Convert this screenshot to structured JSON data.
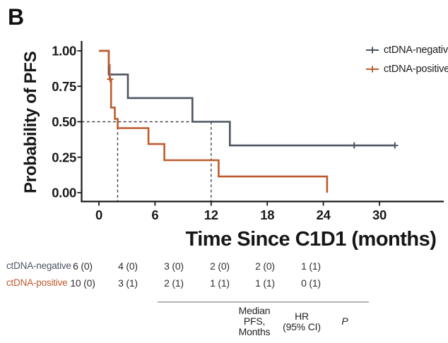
{
  "panel_label": "B",
  "legend": {
    "entries": [
      {
        "label": "ctDNA-negative",
        "color": "#4d5561"
      },
      {
        "label": "ctDNA-positive",
        "color": "#bd5b2d"
      }
    ]
  },
  "chart_data": {
    "type": "line",
    "subtype": "kaplan-meier-step-curve",
    "title": "",
    "xlabel": "Time Since C1D1 (months)",
    "ylabel": "Probability of PFS",
    "x_ticks": [
      0,
      6,
      12,
      18,
      24,
      30
    ],
    "y_ticks": [
      "1.00",
      "0.75",
      "0.50",
      "0.25",
      "0.00"
    ],
    "xlim": [
      0,
      31.7
    ],
    "ylim": [
      0,
      1
    ],
    "grid": false,
    "legend_position": "top-right",
    "series": [
      {
        "name": "ctDNA-negative",
        "color": "#4d5561",
        "points": [
          [
            0,
            1.0
          ],
          [
            1.05,
            1.0
          ],
          [
            1.05,
            0.833
          ],
          [
            3.1,
            0.833
          ],
          [
            3.1,
            0.667
          ],
          [
            10.0,
            0.667
          ],
          [
            10.0,
            0.5
          ],
          [
            14.0,
            0.5
          ],
          [
            14.0,
            0.333
          ],
          [
            31.65,
            0.333
          ]
        ],
        "censor_marks": [
          [
            27.3,
            0.333
          ],
          [
            31.65,
            0.333
          ]
        ]
      },
      {
        "name": "ctDNA-positive",
        "color": "#bd5b2d",
        "points": [
          [
            0,
            1.0
          ],
          [
            1.05,
            1.0
          ],
          [
            1.05,
            0.9
          ],
          [
            1.15,
            0.9
          ],
          [
            1.15,
            0.8
          ],
          [
            1.3,
            0.8
          ],
          [
            1.3,
            0.6
          ],
          [
            1.7,
            0.6
          ],
          [
            1.7,
            0.52
          ],
          [
            2.0,
            0.52
          ],
          [
            2.0,
            0.455
          ],
          [
            5.3,
            0.455
          ],
          [
            5.3,
            0.343
          ],
          [
            7.0,
            0.343
          ],
          [
            7.0,
            0.229
          ],
          [
            12.8,
            0.229
          ],
          [
            12.8,
            0.114
          ],
          [
            24.4,
            0.114
          ],
          [
            24.4,
            0.0
          ]
        ],
        "censor_marks": [
          [
            1.2,
            0.8
          ]
        ]
      }
    ],
    "median_lines": {
      "probability": 0.5,
      "horizontal_to_month": 12.0,
      "vertical_at_months": [
        2.0,
        12.0
      ],
      "medians": {
        "ctDNA-positive": 2.0,
        "ctDNA-negative": 12.0
      }
    }
  },
  "risk_table": {
    "rows": [
      {
        "label": "ctDNA-negative",
        "color": "#4d5561",
        "values": [
          "6 (0)",
          "4 (0)",
          "3 (0)",
          "2 (0)",
          "2 (0)",
          "1 (1)"
        ]
      },
      {
        "label": "ctDNA-positive",
        "color": "#bd5b2d",
        "values": [
          "10 (0)",
          "3 (1)",
          "2 (1)",
          "1 (1)",
          "1 (1)",
          "0 (1)"
        ]
      }
    ]
  },
  "results_table": {
    "headers": [
      "Median\nPFS,\nMonths",
      "HR\n(95% CI)",
      "P"
    ]
  }
}
